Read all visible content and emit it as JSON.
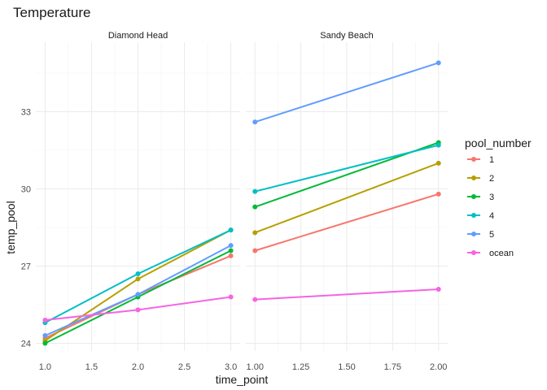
{
  "chart_data": {
    "type": "line",
    "title": "Temperature",
    "xlabel": "time_point",
    "ylabel": "temp_pool",
    "ylim": [
      23.7,
      35.7
    ],
    "y_ticks": [
      24,
      27,
      30,
      33
    ],
    "grid": true,
    "legend": {
      "title": "pool_number",
      "placement": "right",
      "entries": [
        "1",
        "2",
        "3",
        "4",
        "5",
        "ocean"
      ]
    },
    "colors": {
      "1": "#F8766D",
      "2": "#B79F00",
      "3": "#00BA38",
      "4": "#00BFC4",
      "5": "#619CFF",
      "ocean": "#F564E3"
    },
    "panels": [
      {
        "label": "Diamond Head",
        "xlim": [
          0.9,
          3.1
        ],
        "x_ticks": [
          1.0,
          1.5,
          2.0,
          2.5,
          3.0
        ],
        "x_tick_labels": [
          "1.0",
          "1.5",
          "2.0",
          "2.5",
          "3.0"
        ],
        "x": [
          1,
          2,
          3
        ],
        "series": [
          {
            "name": "1",
            "values": [
              24.2,
              25.9,
              27.4
            ]
          },
          {
            "name": "2",
            "values": [
              24.1,
              26.5,
              28.4
            ]
          },
          {
            "name": "3",
            "values": [
              24.0,
              25.8,
              27.6
            ]
          },
          {
            "name": "4",
            "values": [
              24.8,
              26.7,
              28.4
            ]
          },
          {
            "name": "5",
            "values": [
              24.3,
              25.9,
              27.8
            ]
          },
          {
            "name": "ocean",
            "values": [
              24.9,
              25.3,
              25.8
            ]
          }
        ]
      },
      {
        "label": "Sandy Beach",
        "xlim": [
          0.95,
          2.05
        ],
        "x_ticks": [
          1.0,
          1.25,
          1.5,
          1.75,
          2.0
        ],
        "x_tick_labels": [
          "1.00",
          "1.25",
          "1.50",
          "1.75",
          "2.00"
        ],
        "x": [
          1,
          2
        ],
        "series": [
          {
            "name": "1",
            "values": [
              27.6,
              29.8
            ]
          },
          {
            "name": "2",
            "values": [
              28.3,
              31.0
            ]
          },
          {
            "name": "3",
            "values": [
              29.3,
              31.8
            ]
          },
          {
            "name": "4",
            "values": [
              29.9,
              31.7
            ]
          },
          {
            "name": "5",
            "values": [
              32.6,
              34.9
            ]
          },
          {
            "name": "ocean",
            "values": [
              25.7,
              26.1
            ]
          }
        ]
      }
    ]
  }
}
